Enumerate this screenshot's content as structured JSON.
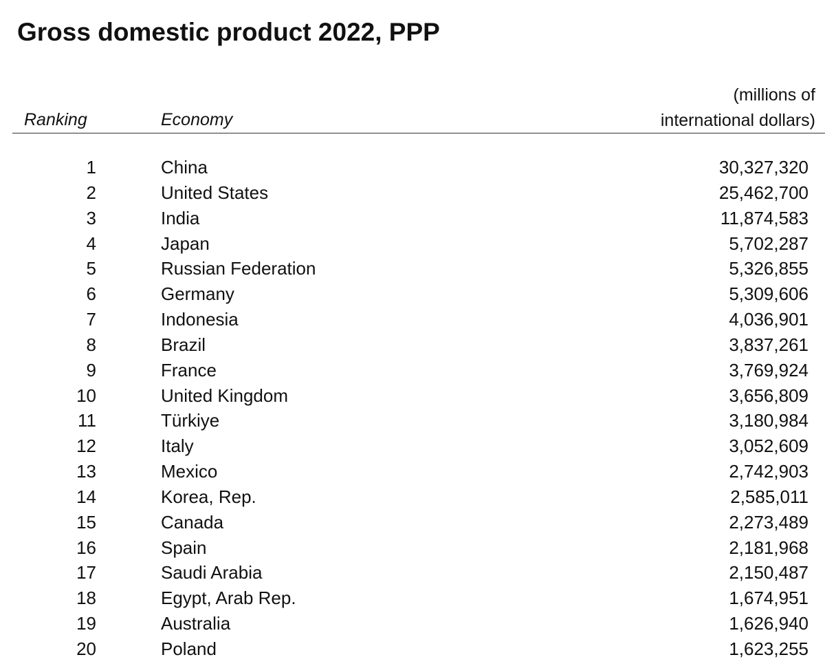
{
  "title": "Gross domestic product 2022, PPP",
  "table": {
    "header": [
      "Ranking",
      "Economy",
      [
        "(millions of",
        "international dollars)"
      ]
    ],
    "rows": [
      [
        1,
        "China",
        "30,327,320"
      ],
      [
        2,
        "United States",
        "25,462,700"
      ],
      [
        3,
        "India",
        "11,874,583"
      ],
      [
        4,
        "Japan",
        "5,702,287"
      ],
      [
        5,
        "Russian Federation",
        "5,326,855"
      ],
      [
        6,
        "Germany",
        "5,309,606"
      ],
      [
        7,
        "Indonesia",
        "4,036,901"
      ],
      [
        8,
        "Brazil",
        "3,837,261"
      ],
      [
        9,
        "France",
        "3,769,924"
      ],
      [
        10,
        "United Kingdom",
        "3,656,809"
      ],
      [
        11,
        "Türkiye",
        "3,180,984"
      ],
      [
        12,
        "Italy",
        "3,052,609"
      ],
      [
        13,
        "Mexico",
        "2,742,903"
      ],
      [
        14,
        "Korea, Rep.",
        "2,585,011"
      ],
      [
        15,
        "Canada",
        "2,273,489"
      ],
      [
        16,
        "Spain",
        "2,181,968"
      ],
      [
        17,
        "Saudi Arabia",
        "2,150,487"
      ],
      [
        18,
        "Egypt, Arab Rep.",
        "1,674,951"
      ],
      [
        19,
        "Australia",
        "1,626,940"
      ],
      [
        20,
        "Poland",
        "1,623,255"
      ]
    ]
  }
}
